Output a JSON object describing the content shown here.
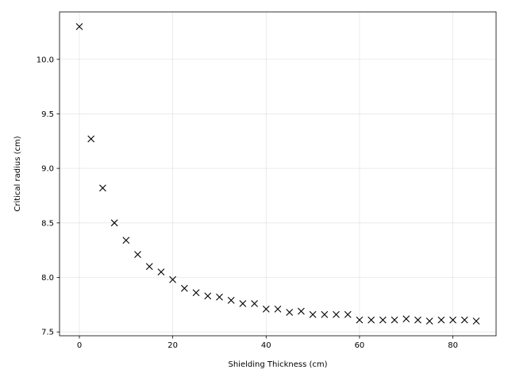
{
  "chart_data": {
    "type": "scatter",
    "xlabel": "Shielding Thickness (cm)",
    "ylabel": "Critical radius (cm)",
    "marker": "x",
    "marker_color": "#000000",
    "grid": true,
    "xlim": [
      -4.25,
      89.25
    ],
    "ylim": [
      7.465,
      10.435
    ],
    "xticks": [
      0,
      20,
      40,
      60,
      80
    ],
    "xtick_labels": [
      "0",
      "20",
      "40",
      "60",
      "80"
    ],
    "yticks": [
      7.5,
      8.0,
      8.5,
      9.0,
      9.5,
      10.0
    ],
    "ytick_labels": [
      "7.5",
      "8.0",
      "8.5",
      "9.0",
      "9.5",
      "10.0"
    ],
    "x": [
      0,
      2.5,
      5,
      7.5,
      10,
      12.5,
      15,
      17.5,
      20,
      22.5,
      25,
      27.5,
      30,
      32.5,
      35,
      37.5,
      40,
      42.5,
      45,
      47.5,
      50,
      52.5,
      55,
      57.5,
      60,
      62.5,
      65,
      67.5,
      70,
      72.5,
      75,
      77.5,
      80,
      82.5,
      85
    ],
    "y": [
      10.3,
      9.27,
      8.82,
      8.5,
      8.34,
      8.21,
      8.1,
      8.05,
      7.98,
      7.9,
      7.86,
      7.83,
      7.82,
      7.79,
      7.76,
      7.76,
      7.71,
      7.71,
      7.68,
      7.69,
      7.66,
      7.66,
      7.66,
      7.66,
      7.61,
      7.61,
      7.61,
      7.61,
      7.62,
      7.61,
      7.6,
      7.61,
      7.61,
      7.61,
      7.6
    ]
  }
}
